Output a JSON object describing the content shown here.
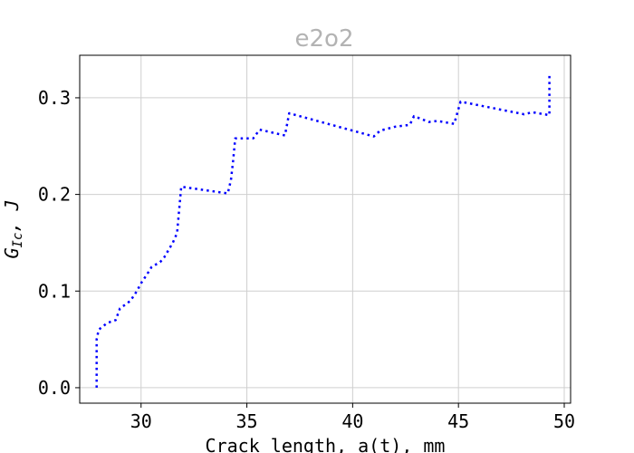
{
  "chart_data": {
    "type": "line",
    "title": "e2o2",
    "xlabel": "Crack length, a(t), mm",
    "ylabel_main": "G",
    "ylabel_sub": "Ic",
    "ylabel_tail": ", J",
    "xlim": [
      27.1,
      50.3
    ],
    "ylim": [
      -0.016,
      0.344
    ],
    "xticks": [
      30,
      35,
      40,
      45,
      50
    ],
    "yticks": [
      0.0,
      0.1,
      0.2,
      0.3
    ],
    "ytick_labels": [
      "0.0",
      "0.1",
      "0.2",
      "0.3"
    ],
    "grid": true,
    "colors": {
      "series": "#0000ff",
      "title": "#b3b3b3",
      "grid": "#cfcfcf"
    },
    "series": [
      {
        "line_style": "dotted",
        "x": [
          27.9,
          27.9,
          28.0,
          28.4,
          28.8,
          29.0,
          29.5,
          29.8,
          30.0,
          30.3,
          30.5,
          30.9,
          31.1,
          31.5,
          31.7,
          31.9,
          34.1,
          34.25,
          34.35,
          34.45,
          35.3,
          35.6,
          36.8,
          37.0,
          41.0,
          41.3,
          42.0,
          42.7,
          42.9,
          43.6,
          44.0,
          44.8,
          45.1,
          48.1,
          48.5,
          49.3,
          49.3
        ],
        "y": [
          0.0,
          0.05,
          0.06,
          0.067,
          0.07,
          0.082,
          0.09,
          0.1,
          0.108,
          0.118,
          0.125,
          0.13,
          0.135,
          0.15,
          0.16,
          0.208,
          0.201,
          0.215,
          0.235,
          0.258,
          0.258,
          0.267,
          0.261,
          0.284,
          0.26,
          0.266,
          0.27,
          0.272,
          0.281,
          0.275,
          0.276,
          0.273,
          0.296,
          0.283,
          0.285,
          0.282,
          0.325
        ]
      }
    ]
  }
}
